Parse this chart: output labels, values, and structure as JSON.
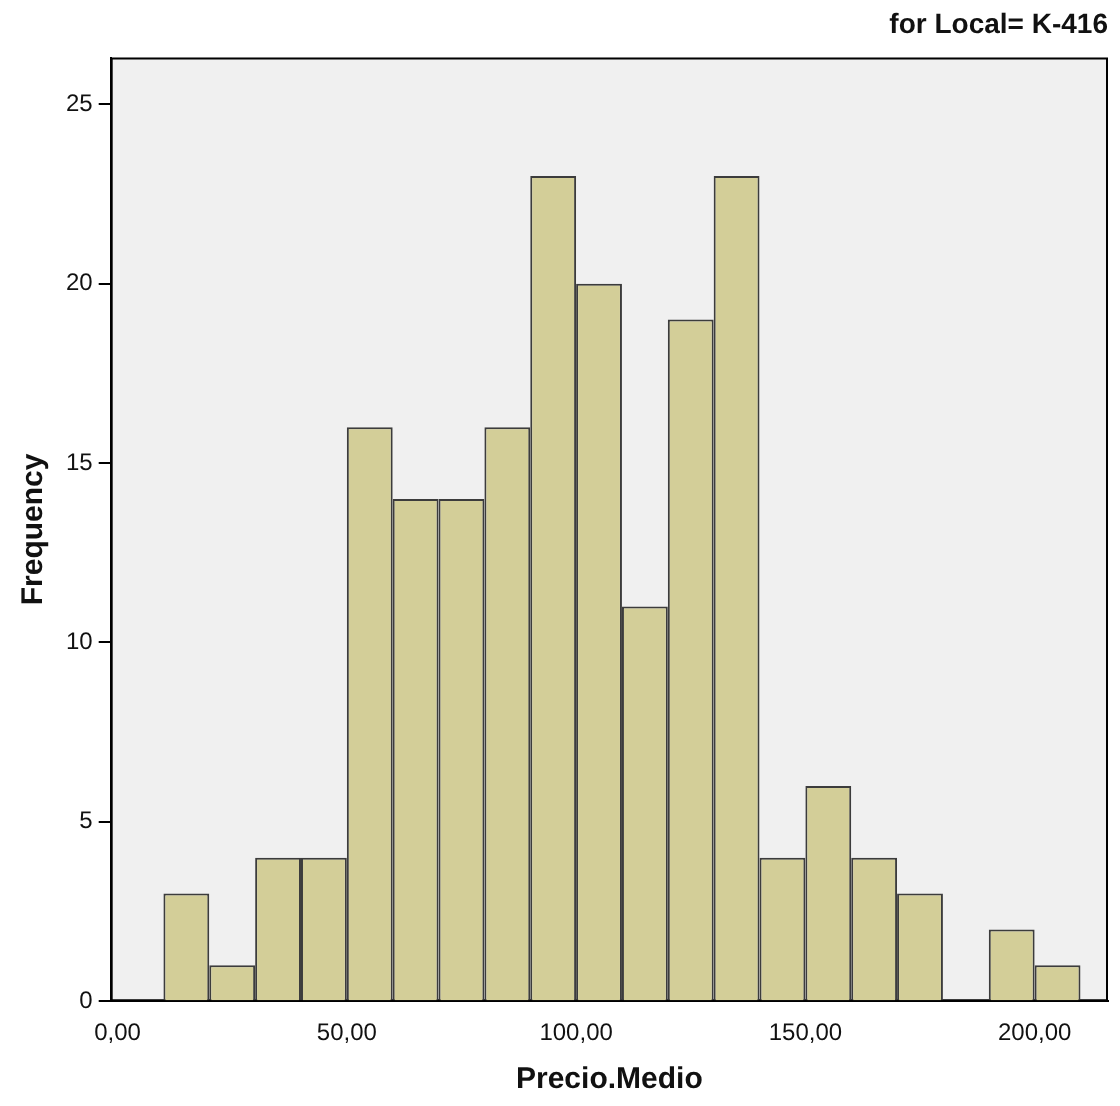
{
  "chart_data": {
    "type": "histogram",
    "title": "for Local= K-416",
    "xlabel": "Precio.Medio",
    "ylabel": "Frequency",
    "bins": [
      10,
      20,
      30,
      40,
      50,
      60,
      70,
      80,
      90,
      100,
      110,
      120,
      130,
      140,
      150,
      160,
      170,
      180,
      190,
      200,
      210
    ],
    "values": [
      3,
      1,
      4,
      4,
      16,
      14,
      14,
      16,
      23,
      20,
      11,
      19,
      23,
      4,
      6,
      4,
      3,
      0,
      2,
      1
    ],
    "color": "#d3ce98",
    "xlim": [
      -1.5,
      216
    ],
    "xticks": [
      {
        "value": 0,
        "label": "0,00"
      },
      {
        "value": 50,
        "label": "50,00"
      },
      {
        "value": 100,
        "label": "100,00"
      },
      {
        "value": 150,
        "label": "150,00"
      },
      {
        "value": 200,
        "label": "200,00"
      }
    ],
    "ylim": [
      0,
      26.3
    ],
    "yticks": [
      0,
      5,
      10,
      15,
      20,
      25
    ],
    "grid": false,
    "legend": false
  }
}
